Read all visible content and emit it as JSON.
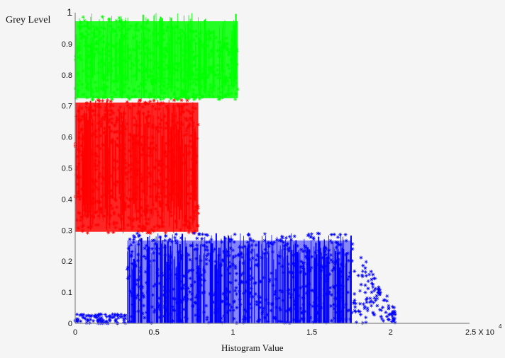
{
  "chart_data": {
    "type": "scatter",
    "ylabel": "Grey Level",
    "xlabel": "Histogram   Value",
    "xlim": [
      0,
      2.5
    ],
    "ylim": [
      0,
      1
    ],
    "x_exponent_label": "2.5 X 10",
    "x_exponent_power": "4",
    "x_ticks": [
      {
        "value": 0,
        "label": "0"
      },
      {
        "value": 0.5,
        "label": "0.5"
      },
      {
        "value": 1,
        "label": "1"
      },
      {
        "value": 1.5,
        "label": "1.5"
      },
      {
        "value": 2,
        "label": "2"
      }
    ],
    "y_ticks": [
      {
        "value": 0,
        "label": "0"
      },
      {
        "value": 0.1,
        "label": "0.1"
      },
      {
        "value": 0.2,
        "label": "0.2"
      },
      {
        "value": 0.3,
        "label": "0.3"
      },
      {
        "value": 0.4,
        "label": "0.4"
      },
      {
        "value": 0.5,
        "label": "0.5"
      },
      {
        "value": 0.6,
        "label": "0.6"
      },
      {
        "value": 0.7,
        "label": "0.7"
      },
      {
        "value": 0.8,
        "label": "0.8"
      },
      {
        "value": 0.9,
        "label": "0.9"
      },
      {
        "value": 1,
        "label": "1"
      }
    ],
    "grid": false,
    "marker": "*",
    "series": [
      {
        "color": "#00ff00",
        "x_range": [
          0,
          1.03
        ],
        "y_range": [
          0.72,
          1.0
        ],
        "outline": [
          [
            0,
            0.95
          ],
          [
            0.1,
            0.97
          ],
          [
            0.3,
            0.99
          ],
          [
            0.5,
            0.98
          ],
          [
            0.7,
            0.96
          ],
          [
            0.9,
            0.94
          ],
          [
            1.03,
            0.92
          ]
        ]
      },
      {
        "color": "#ff0000",
        "x_range": [
          0,
          0.78
        ],
        "y_range": [
          0.29,
          0.72
        ]
      },
      {
        "color": "#0000ff",
        "x_range": [
          0,
          2.03
        ],
        "y_range": [
          0,
          0.29
        ],
        "dense_x_range": [
          0.33,
          1.75
        ],
        "tail_x_range": [
          1.75,
          2.03
        ]
      }
    ]
  }
}
